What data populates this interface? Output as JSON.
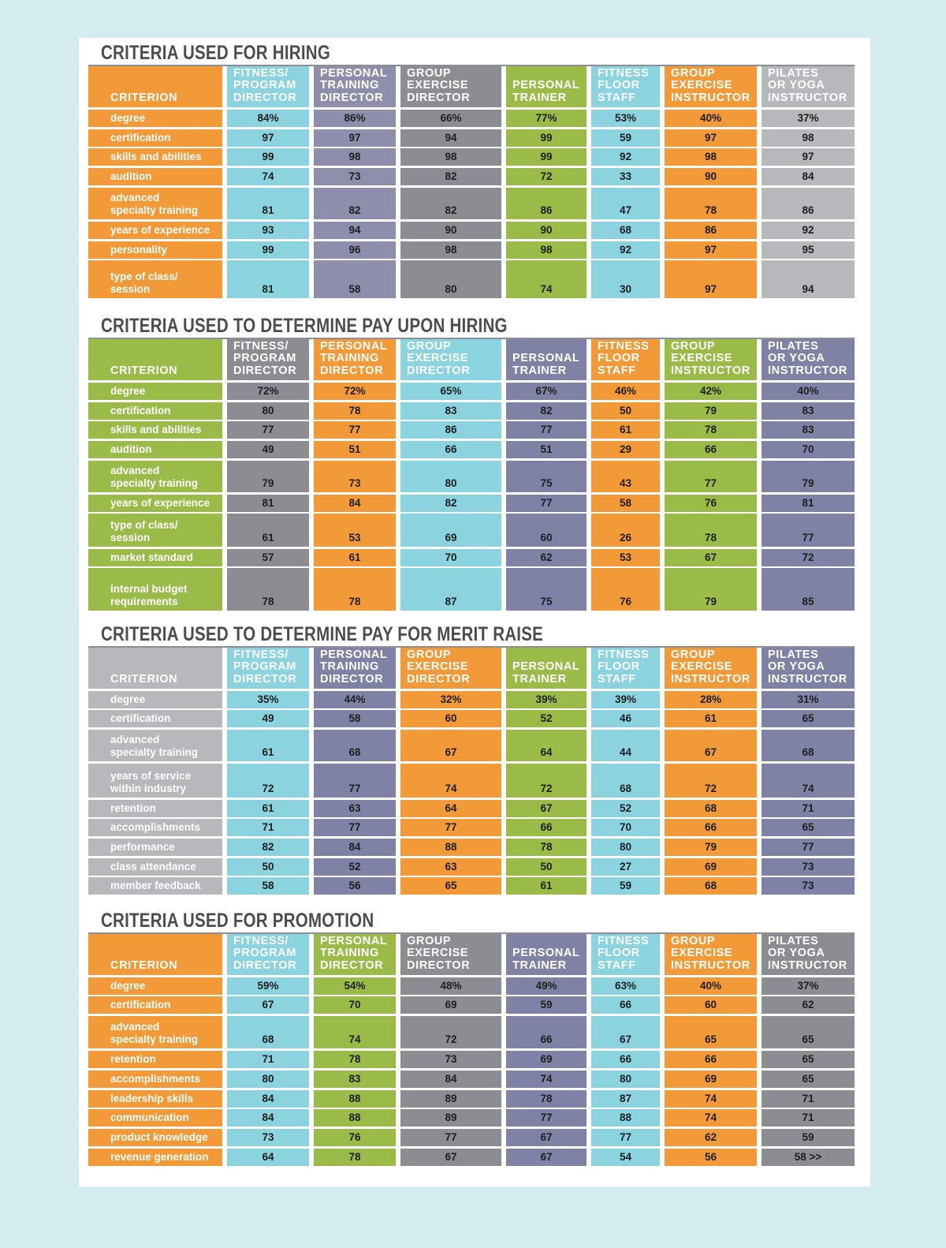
{
  "colors": {
    "orange": "#f29a38",
    "cyan": "#8ad3df",
    "lavender": "#8e8eac",
    "gray": "#8b8d93",
    "green": "#9bbb48",
    "silver": "#b7b8bc",
    "slate": "#7f82a4",
    "text_dark": "#1e1e1e",
    "text_light": "#ffffff"
  },
  "header_labels": {
    "criterion": "CRITERION",
    "fitness_program_director": "FITNESS/\nPROGRAM\nDIRECTOR",
    "personal_training_director": "PERSONAL\nTRAINING\nDIRECTOR",
    "group_exercise_director": "GROUP\nEXERCISE\nDIRECTOR",
    "personal_trainer": "PERSONAL\nTRAINER",
    "fitness_floor_staff": "FITNESS\nFLOOR\nSTAFF",
    "group_exercise_instructor": "GROUP\nEXERCISE\nINSTRUCTOR",
    "pilates_yoga_instructor": "PILATES\nOR YOGA\nINSTRUCTOR"
  },
  "sections": [
    {
      "title": "CRITERIA USED FOR HIRING",
      "column_colors": [
        "orange",
        "cyan",
        "lavender",
        "gray",
        "green",
        "cyan",
        "orange",
        "silver"
      ],
      "rows": [
        {
          "label": "degree",
          "values": [
            "84%",
            "86%",
            "66%",
            "77%",
            "53%",
            "40%",
            "37%"
          ]
        },
        {
          "label": "certification",
          "values": [
            "97",
            "97",
            "94",
            "99",
            "59",
            "97",
            "98"
          ]
        },
        {
          "label": "skills and abilities",
          "values": [
            "99",
            "98",
            "98",
            "99",
            "92",
            "98",
            "97"
          ]
        },
        {
          "label": "audition",
          "values": [
            "74",
            "73",
            "82",
            "72",
            "33",
            "90",
            "84"
          ]
        },
        {
          "label": "advanced\nspecialty training",
          "values": [
            "81",
            "82",
            "82",
            "86",
            "47",
            "78",
            "86"
          ]
        },
        {
          "label": "years of experience",
          "values": [
            "93",
            "94",
            "90",
            "90",
            "68",
            "86",
            "92"
          ]
        },
        {
          "label": "personality",
          "values": [
            "99",
            "96",
            "98",
            "98",
            "92",
            "97",
            "95"
          ]
        },
        {
          "label": "type of class/\nsession",
          "values": [
            "81",
            "58",
            "80",
            "74",
            "30",
            "97",
            "94"
          ]
        }
      ]
    },
    {
      "title": "CRITERIA USED TO DETERMINE PAY UPON HIRING",
      "column_colors": [
        "green",
        "gray",
        "orange",
        "cyan",
        "slate",
        "orange",
        "green",
        "slate"
      ],
      "rows": [
        {
          "label": "degree",
          "values": [
            "72%",
            "72%",
            "65%",
            "67%",
            "46%",
            "42%",
            "40%"
          ]
        },
        {
          "label": "certification",
          "values": [
            "80",
            "78",
            "83",
            "82",
            "50",
            "79",
            "83"
          ]
        },
        {
          "label": "skills and abilities",
          "values": [
            "77",
            "77",
            "86",
            "77",
            "61",
            "78",
            "83"
          ]
        },
        {
          "label": "audition",
          "values": [
            "49",
            "51",
            "66",
            "51",
            "29",
            "66",
            "70"
          ]
        },
        {
          "label": "advanced\nspecialty training",
          "values": [
            "79",
            "73",
            "80",
            "75",
            "43",
            "77",
            "79"
          ]
        },
        {
          "label": "years of experience",
          "values": [
            "81",
            "84",
            "82",
            "77",
            "58",
            "76",
            "81"
          ]
        },
        {
          "label": "type of class/\nsession",
          "values": [
            "61",
            "53",
            "69",
            "60",
            "26",
            "78",
            "77"
          ]
        },
        {
          "label": "market standard",
          "values": [
            "57",
            "61",
            "70",
            "62",
            "53",
            "67",
            "72"
          ]
        },
        {
          "label": "internal budget\nrequirements",
          "values": [
            "78",
            "78",
            "87",
            "75",
            "76",
            "79",
            "85"
          ]
        }
      ]
    },
    {
      "title": "CRITERIA USED TO DETERMINE PAY FOR MERIT RAISE",
      "column_colors": [
        "silver",
        "cyan",
        "slate",
        "orange",
        "green",
        "cyan",
        "orange",
        "slate"
      ],
      "rows": [
        {
          "label": "degree",
          "values": [
            "35%",
            "44%",
            "32%",
            "39%",
            "39%",
            "28%",
            "31%"
          ]
        },
        {
          "label": "certification",
          "values": [
            "49",
            "58",
            "60",
            "52",
            "46",
            "61",
            "65"
          ]
        },
        {
          "label": "advanced\nspecialty training",
          "values": [
            "61",
            "68",
            "67",
            "64",
            "44",
            "67",
            "68"
          ]
        },
        {
          "label": "years of service\nwithin industry",
          "values": [
            "72",
            "77",
            "74",
            "72",
            "68",
            "72",
            "74"
          ]
        },
        {
          "label": "retention",
          "values": [
            "61",
            "63",
            "64",
            "67",
            "52",
            "68",
            "71"
          ]
        },
        {
          "label": "accomplishments",
          "values": [
            "71",
            "77",
            "77",
            "66",
            "70",
            "66",
            "65"
          ]
        },
        {
          "label": "performance",
          "values": [
            "82",
            "84",
            "88",
            "78",
            "80",
            "79",
            "77"
          ]
        },
        {
          "label": "class attendance",
          "values": [
            "50",
            "52",
            "63",
            "50",
            "27",
            "69",
            "73"
          ]
        },
        {
          "label": "member feedback",
          "values": [
            "58",
            "56",
            "65",
            "61",
            "59",
            "68",
            "73"
          ]
        }
      ]
    },
    {
      "title": "CRITERIA USED FOR PROMOTION",
      "column_colors": [
        "orange",
        "cyan",
        "green",
        "gray",
        "slate",
        "cyan",
        "orange",
        "gray"
      ],
      "rows": [
        {
          "label": "degree",
          "values": [
            "59%",
            "54%",
            "48%",
            "49%",
            "63%",
            "40%",
            "37%"
          ]
        },
        {
          "label": "certification",
          "values": [
            "67",
            "70",
            "69",
            "59",
            "66",
            "60",
            "62"
          ]
        },
        {
          "label": "advanced\nspecialty training",
          "values": [
            "68",
            "74",
            "72",
            "66",
            "67",
            "65",
            "65"
          ]
        },
        {
          "label": "retention",
          "values": [
            "71",
            "78",
            "73",
            "69",
            "66",
            "66",
            "65"
          ]
        },
        {
          "label": "accomplishments",
          "values": [
            "80",
            "83",
            "84",
            "74",
            "80",
            "69",
            "65"
          ]
        },
        {
          "label": "leadership skills",
          "values": [
            "84",
            "88",
            "89",
            "78",
            "87",
            "74",
            "71"
          ]
        },
        {
          "label": "communication",
          "values": [
            "84",
            "88",
            "89",
            "77",
            "88",
            "74",
            "71"
          ]
        },
        {
          "label": "product knowledge",
          "values": [
            "73",
            "76",
            "77",
            "67",
            "77",
            "62",
            "59"
          ]
        },
        {
          "label": "revenue generation",
          "values": [
            "64",
            "78",
            "67",
            "67",
            "54",
            "56",
            "58 >>"
          ]
        }
      ]
    }
  ]
}
